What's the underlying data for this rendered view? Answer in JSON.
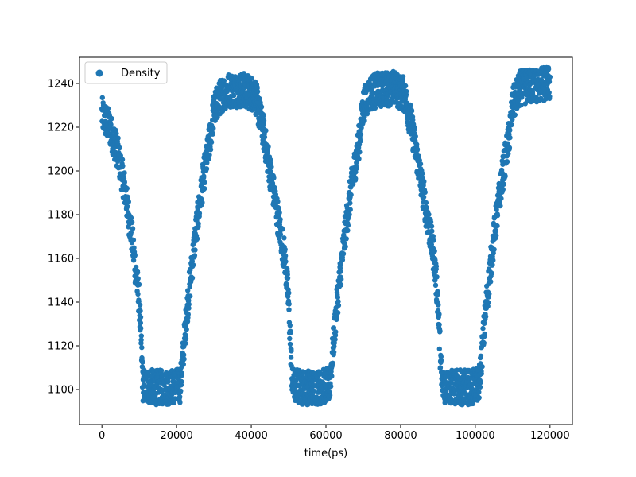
{
  "chart_data": {
    "type": "scatter",
    "xlabel": "time(ps)",
    "ylabel": "",
    "title": "",
    "xlim": [
      -6000,
      126000
    ],
    "ylim": [
      1084,
      1252
    ],
    "x_ticks": [
      0,
      20000,
      40000,
      60000,
      80000,
      100000,
      120000
    ],
    "x_tick_labels": [
      "0",
      "20000",
      "40000",
      "60000",
      "80000",
      "100000",
      "120000"
    ],
    "y_ticks": [
      1100,
      1120,
      1140,
      1160,
      1180,
      1200,
      1220,
      1240
    ],
    "y_tick_labels": [
      "1100",
      "1120",
      "1140",
      "1160",
      "1180",
      "1200",
      "1220",
      "1240"
    ],
    "grid": false,
    "legend": {
      "placement": "top-left",
      "entries": [
        "Density"
      ]
    },
    "series": [
      {
        "name": "Density",
        "color": "#1f77b4",
        "approx_band_width": 8,
        "x": [
          0,
          2000,
          4000,
          6000,
          8000,
          10000,
          11000,
          14000,
          18000,
          21000,
          23000,
          25000,
          27000,
          29000,
          30000,
          32000,
          34000,
          38000,
          41000,
          43000,
          45000,
          47000,
          49000,
          50000,
          51000,
          54000,
          58000,
          61000,
          63000,
          65000,
          67000,
          69000,
          70000,
          72000,
          74000,
          78000,
          81000,
          83000,
          85000,
          87000,
          89000,
          90000,
          91000,
          94000,
          98000,
          101000,
          103000,
          105000,
          107000,
          109000,
          110000,
          112000,
          116000,
          120000
        ],
        "y": [
          1226,
          1220,
          1210,
          1193,
          1170,
          1140,
          1102,
          1101,
          1101,
          1102,
          1140,
          1170,
          1195,
          1215,
          1228,
          1235,
          1237,
          1237,
          1235,
          1220,
          1200,
          1180,
          1160,
          1140,
          1102,
          1101,
          1101,
          1102,
          1140,
          1170,
          1195,
          1215,
          1230,
          1236,
          1237,
          1238,
          1235,
          1220,
          1200,
          1180,
          1160,
          1140,
          1102,
          1101,
          1101,
          1102,
          1140,
          1170,
          1195,
          1215,
          1230,
          1238,
          1239,
          1240
        ]
      }
    ]
  }
}
